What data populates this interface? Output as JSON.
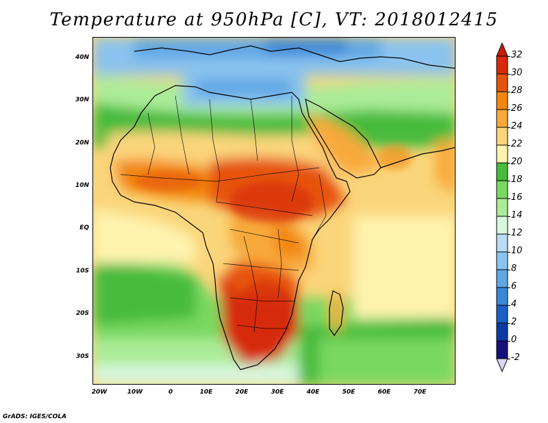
{
  "title": "Temperature at 950hPa [C], VT: 2018012415",
  "credit": "GrADS: IGES/COLA",
  "map": {
    "lat_labels": [
      "40N",
      "30N",
      "20N",
      "10N",
      "EQ",
      "10S",
      "20S",
      "30S"
    ],
    "lon_labels": [
      "20W",
      "10W",
      "0",
      "10E",
      "20E",
      "30E",
      "40E",
      "50E",
      "60E",
      "70E"
    ],
    "extent": {
      "lon_min": -22,
      "lon_max": 80,
      "lat_min": -36,
      "lat_max": 45
    },
    "field": "Temperature at 950hPa",
    "units": "C",
    "valid_time": "2018012415"
  },
  "colorbar": {
    "labels": [
      "32",
      "30",
      "28",
      "26",
      "24",
      "22",
      "20",
      "18",
      "16",
      "14",
      "12",
      "10",
      "8",
      "6",
      "4",
      "2",
      "0",
      "-2"
    ],
    "colors": [
      "#d62a0a",
      "#e6530e",
      "#f2860f",
      "#f8a93a",
      "#fbd57b",
      "#fef3ae",
      "#46bb3c",
      "#79d860",
      "#acec98",
      "#d8f7dd",
      "#b6ddf3",
      "#8ac3ee",
      "#5fa7e5",
      "#3a87d8",
      "#1b60c5",
      "#0d3ba6",
      "#16117a"
    ],
    "top_arrow_color": "#cc1c06",
    "bottom_arrow_color": "#dcd5fb"
  }
}
